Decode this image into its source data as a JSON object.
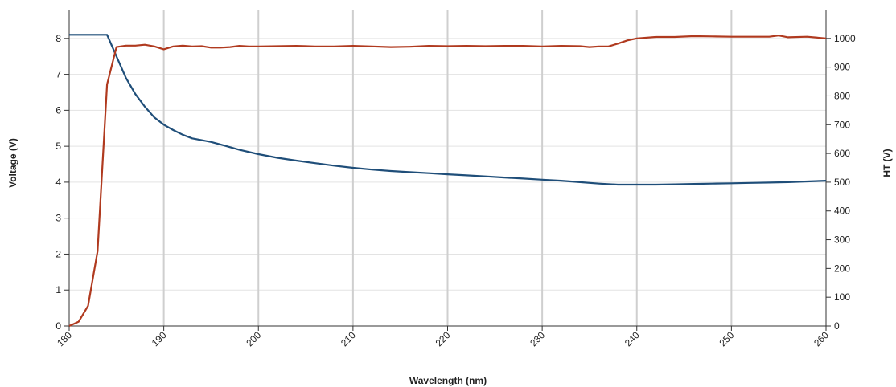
{
  "chart_data": {
    "type": "line",
    "xlabel": "Wavelength (nm)",
    "ylabel": "Voltage (V)",
    "y2label": "HT (V)",
    "xlim": [
      180,
      260
    ],
    "ylim": [
      0,
      8.8
    ],
    "y2lim": [
      0,
      1100
    ],
    "x_ticks": [
      "180",
      "190",
      "200",
      "210",
      "220",
      "230",
      "240",
      "250",
      "260"
    ],
    "y_ticks": [
      "0",
      "1",
      "2",
      "3",
      "4",
      "5",
      "6",
      "7",
      "8"
    ],
    "y2_ticks": [
      "0",
      "100",
      "200",
      "300",
      "400",
      "500",
      "600",
      "700",
      "800",
      "900",
      "1000"
    ],
    "grid": "vertical and horizontal",
    "series": [
      {
        "axis": "left",
        "color": "#1f4e79",
        "points": [
          [
            180,
            8.1
          ],
          [
            184,
            8.1
          ],
          [
            185,
            7.5
          ],
          [
            186,
            6.9
          ],
          [
            187,
            6.45
          ],
          [
            188,
            6.1
          ],
          [
            189,
            5.8
          ],
          [
            190,
            5.6
          ],
          [
            191,
            5.45
          ],
          [
            192,
            5.32
          ],
          [
            193,
            5.22
          ],
          [
            195,
            5.12
          ],
          [
            196,
            5.05
          ],
          [
            198,
            4.9
          ],
          [
            200,
            4.78
          ],
          [
            202,
            4.68
          ],
          [
            204,
            4.6
          ],
          [
            206,
            4.53
          ],
          [
            208,
            4.46
          ],
          [
            210,
            4.4
          ],
          [
            212,
            4.35
          ],
          [
            214,
            4.31
          ],
          [
            216,
            4.28
          ],
          [
            218,
            4.25
          ],
          [
            220,
            4.22
          ],
          [
            222,
            4.19
          ],
          [
            224,
            4.16
          ],
          [
            226,
            4.13
          ],
          [
            228,
            4.1
          ],
          [
            230,
            4.07
          ],
          [
            232,
            4.04
          ],
          [
            234,
            4.0
          ],
          [
            236,
            3.96
          ],
          [
            238,
            3.93
          ],
          [
            242,
            3.93
          ],
          [
            244,
            3.94
          ],
          [
            246,
            3.95
          ],
          [
            248,
            3.96
          ],
          [
            250,
            3.97
          ],
          [
            252,
            3.98
          ],
          [
            254,
            3.99
          ],
          [
            256,
            4.0
          ],
          [
            258,
            4.02
          ],
          [
            260,
            4.04
          ]
        ]
      },
      {
        "axis": "right",
        "color": "#b03a1f",
        "points": [
          [
            180,
            0
          ],
          [
            181,
            15
          ],
          [
            182,
            70
          ],
          [
            183,
            260
          ],
          [
            184,
            840
          ],
          [
            185,
            970
          ],
          [
            186,
            975
          ],
          [
            187,
            975
          ],
          [
            188,
            978
          ],
          [
            189,
            972
          ],
          [
            190,
            962
          ],
          [
            191,
            972
          ],
          [
            192,
            975
          ],
          [
            193,
            972
          ],
          [
            194,
            973
          ],
          [
            195,
            968
          ],
          [
            196,
            968
          ],
          [
            197,
            970
          ],
          [
            198,
            974
          ],
          [
            199,
            972
          ],
          [
            200,
            972
          ],
          [
            202,
            973
          ],
          [
            204,
            974
          ],
          [
            206,
            972
          ],
          [
            208,
            972
          ],
          [
            210,
            974
          ],
          [
            212,
            972
          ],
          [
            214,
            970
          ],
          [
            216,
            971
          ],
          [
            218,
            974
          ],
          [
            220,
            973
          ],
          [
            222,
            974
          ],
          [
            224,
            973
          ],
          [
            226,
            974
          ],
          [
            228,
            974
          ],
          [
            230,
            972
          ],
          [
            232,
            974
          ],
          [
            234,
            973
          ],
          [
            235,
            970
          ],
          [
            236,
            972
          ],
          [
            237,
            972
          ],
          [
            238,
            982
          ],
          [
            239,
            993
          ],
          [
            240,
            1000
          ],
          [
            242,
            1005
          ],
          [
            244,
            1005
          ],
          [
            246,
            1008
          ],
          [
            248,
            1007
          ],
          [
            250,
            1006
          ],
          [
            252,
            1006
          ],
          [
            254,
            1006
          ],
          [
            255,
            1010
          ],
          [
            256,
            1004
          ],
          [
            258,
            1006
          ],
          [
            260,
            1000
          ]
        ]
      }
    ]
  }
}
